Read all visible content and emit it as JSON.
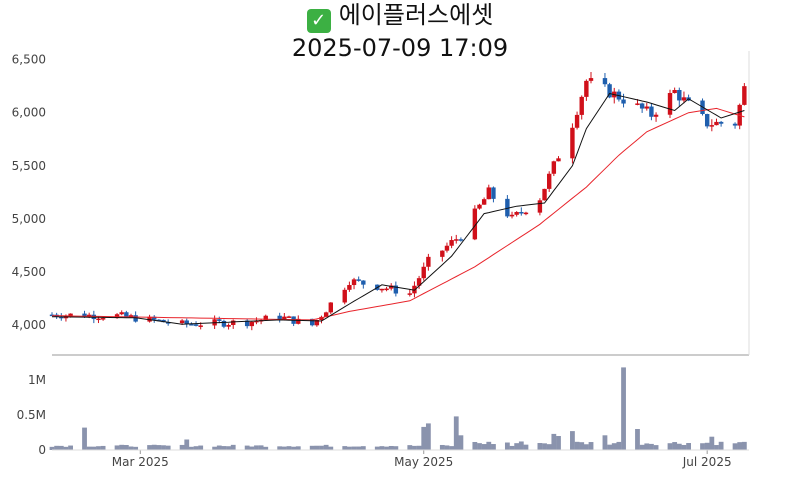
{
  "header": {
    "check_icon": "check-mark-icon",
    "title": "에이플러스에셋",
    "timestamp": "2025-07-09 17:09"
  },
  "colors": {
    "up": "#d0101a",
    "down": "#1f5fae",
    "ma_short": "#111111",
    "ma_long": "#e8242b",
    "volume": "#8a93ad",
    "axis": "#999999"
  },
  "chart_data": [
    {
      "type": "candlestick",
      "title": "",
      "y_ticks": [
        "4,000",
        "4,500",
        "5,000",
        "5,500",
        "6,000",
        "6,500"
      ],
      "y_tick_values": [
        4000,
        4500,
        5000,
        5500,
        6000,
        6500
      ],
      "ylim": [
        3720,
        6580
      ],
      "x_range": [
        "2025-02-10",
        "2025-07-10"
      ],
      "trend": [
        [
          "2025-02-10",
          4100
        ],
        [
          "2025-02-24",
          4090
        ],
        [
          "2025-03-10",
          4010
        ],
        [
          "2025-03-24",
          4030
        ],
        [
          "2025-03-31",
          4080
        ],
        [
          "2025-04-07",
          4000
        ],
        [
          "2025-04-10",
          4150
        ],
        [
          "2025-04-15",
          4420
        ],
        [
          "2025-04-23",
          4350
        ],
        [
          "2025-04-28",
          4300
        ],
        [
          "2025-05-02",
          4600
        ],
        [
          "2025-05-09",
          4850
        ],
        [
          "2025-05-15",
          5250
        ],
        [
          "2025-05-20",
          5000
        ],
        [
          "2025-05-26",
          5200
        ],
        [
          "2025-06-02",
          5900
        ],
        [
          "2025-06-05",
          6300
        ],
        [
          "2025-06-12",
          6150
        ],
        [
          "2025-06-19",
          5980
        ],
        [
          "2025-06-24",
          6200
        ],
        [
          "2025-07-01",
          5900
        ],
        [
          "2025-07-07",
          5900
        ],
        [
          "2025-07-09",
          6230
        ]
      ],
      "ma_short_anchors": [
        [
          "2025-02-10",
          4080
        ],
        [
          "2025-02-28",
          4070
        ],
        [
          "2025-03-10",
          4010
        ],
        [
          "2025-03-31",
          4050
        ],
        [
          "2025-04-09",
          4040
        ],
        [
          "2025-04-15",
          4200
        ],
        [
          "2025-04-22",
          4380
        ],
        [
          "2025-04-29",
          4330
        ],
        [
          "2025-05-07",
          4650
        ],
        [
          "2025-05-14",
          5050
        ],
        [
          "2025-05-21",
          5120
        ],
        [
          "2025-05-27",
          5150
        ],
        [
          "2025-06-02",
          5500
        ],
        [
          "2025-06-05",
          5850
        ],
        [
          "2025-06-10",
          6180
        ],
        [
          "2025-06-18",
          6100
        ],
        [
          "2025-06-24",
          6020
        ],
        [
          "2025-06-27",
          6130
        ],
        [
          "2025-07-04",
          5950
        ],
        [
          "2025-07-09",
          6020
        ]
      ],
      "ma_long_anchors": [
        [
          "2025-02-10",
          4090
        ],
        [
          "2025-03-10",
          4070
        ],
        [
          "2025-04-07",
          4050
        ],
        [
          "2025-04-15",
          4130
        ],
        [
          "2025-04-28",
          4230
        ],
        [
          "2025-05-12",
          4550
        ],
        [
          "2025-05-26",
          4950
        ],
        [
          "2025-06-05",
          5300
        ],
        [
          "2025-06-12",
          5600
        ],
        [
          "2025-06-18",
          5820
        ],
        [
          "2025-06-27",
          6000
        ],
        [
          "2025-07-03",
          6040
        ],
        [
          "2025-07-09",
          5960
        ]
      ]
    },
    {
      "type": "bar",
      "title": "",
      "y_ticks": [
        "0",
        "0.5M",
        "1M"
      ],
      "y_tick_values": [
        0,
        500000,
        1000000
      ],
      "ylim": [
        0,
        1200000
      ],
      "x_ticks": [
        "Mar 2025",
        "May 2025",
        "Jul 2025"
      ],
      "x_tick_dates": [
        "2025-03-01",
        "2025-05-01",
        "2025-07-01"
      ],
      "volume_spikes": {
        "2025-02-17": 320000,
        "2025-03-11": 150000,
        "2025-05-01": 330000,
        "2025-05-02": 380000,
        "2025-05-08": 480000,
        "2025-05-09": 210000,
        "2025-05-29": 230000,
        "2025-05-30": 200000,
        "2025-06-02": 270000,
        "2025-06-09": 210000,
        "2025-06-13": 1180000,
        "2025-06-16": 300000,
        "2025-07-02": 190000
      }
    }
  ]
}
